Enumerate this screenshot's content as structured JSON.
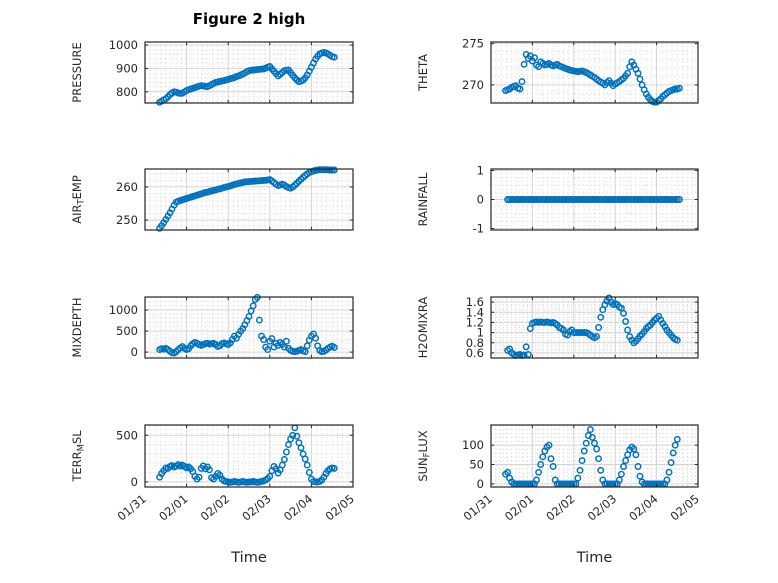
{
  "figure": {
    "title": "Figure 2 high",
    "xlabel": "Time"
  },
  "colors": {
    "marker": "#0072BD",
    "axis": "#262626",
    "grid": "#d4d4d4",
    "minor_grid": "#d7d7d7",
    "text": "#262626",
    "background": "#ffffff"
  },
  "x_ticks": {
    "labels": [
      "01/31",
      "02/01",
      "02/02",
      "02/03",
      "02/04",
      "02/05"
    ],
    "values": [
      0,
      1,
      2,
      3,
      4,
      5
    ]
  },
  "chart_data": [
    {
      "id": "pressure",
      "type": "scatter",
      "row": 0,
      "col": 0,
      "ylabel": "PRESSURE",
      "ylabel_parts": [
        {
          "text": "PRESSURE",
          "sub": false
        }
      ],
      "xlim": [
        0,
        5
      ],
      "ylim": [
        752,
        1013
      ],
      "yticks": [
        800,
        900,
        1000
      ],
      "ytick_labels": [
        "800",
        "900",
        "1000"
      ],
      "y_minor_step": 20,
      "x_start": 0.35,
      "x_step": 0.05,
      "y": [
        755,
        760,
        765,
        770,
        778,
        788,
        795,
        800,
        798,
        795,
        793,
        794,
        800,
        805,
        809,
        812,
        815,
        818,
        821,
        824,
        826,
        825,
        823,
        822,
        826,
        831,
        836,
        840,
        842,
        844,
        846,
        848,
        851,
        853,
        856,
        858,
        861,
        865,
        868,
        872,
        876,
        881,
        886,
        890,
        892,
        893,
        894,
        895,
        896,
        897,
        898,
        901,
        905,
        908,
        898,
        888,
        878,
        868,
        875,
        883,
        890,
        892,
        893,
        882,
        871,
        860,
        851,
        843,
        846,
        850,
        860,
        872,
        888,
        905,
        923,
        940,
        952,
        962,
        966,
        968,
        966,
        962,
        956,
        950,
        948
      ]
    },
    {
      "id": "theta",
      "type": "scatter",
      "row": 0,
      "col": 1,
      "ylabel": "THETA",
      "ylabel_parts": [
        {
          "text": "THETA",
          "sub": false
        }
      ],
      "xlim": [
        0,
        5
      ],
      "ylim": [
        267.8,
        275.2
      ],
      "yticks": [
        270,
        275
      ],
      "ytick_labels": [
        "270",
        "275"
      ],
      "y_minor_step": 1,
      "x_start": 0.35,
      "x_step": 0.05,
      "y": [
        269.3,
        269.4,
        269.5,
        269.7,
        269.8,
        269.9,
        269.6,
        269.5,
        270.4,
        272.5,
        273.7,
        273.2,
        273.5,
        272.9,
        273.3,
        272.4,
        272.2,
        272.8,
        272.6,
        272.4,
        272.5,
        272.6,
        272.4,
        272.3,
        272.4,
        272.5,
        272.3,
        272.2,
        272.1,
        272.0,
        271.9,
        271.8,
        271.75,
        271.7,
        271.65,
        271.6,
        271.65,
        271.7,
        271.6,
        271.5,
        271.35,
        271.2,
        271.05,
        270.9,
        270.7,
        270.5,
        270.35,
        270.2,
        270.0,
        270.3,
        270.5,
        270.2,
        269.9,
        270.1,
        270.25,
        270.4,
        270.6,
        270.8,
        271.1,
        271.4,
        272.2,
        272.8,
        272.4,
        271.9,
        271.4,
        270.7,
        270.0,
        269.4,
        268.9,
        268.5,
        268.2,
        268.0,
        267.9,
        267.9,
        268.1,
        268.3,
        268.6,
        268.8,
        269.0,
        269.2,
        269.3,
        269.4,
        269.5,
        269.5,
        269.6
      ]
    },
    {
      "id": "air-temp",
      "type": "scatter",
      "row": 1,
      "col": 0,
      "ylabel": "AIR_TEMP",
      "ylabel_parts": [
        {
          "text": "AIR",
          "sub": false
        },
        {
          "text": "T",
          "sub": true
        },
        {
          "text": "EMP",
          "sub": false
        }
      ],
      "xlim": [
        0,
        5
      ],
      "ylim": [
        247,
        265.4
      ],
      "yticks": [
        250,
        260
      ],
      "ytick_labels": [
        "250",
        "260"
      ],
      "y_minor_step": 2,
      "x_start": 0.35,
      "x_step": 0.05,
      "y": [
        247.5,
        248.3,
        249.2,
        250.2,
        251.2,
        252.2,
        253.3,
        254.5,
        255.4,
        255.7,
        255.9,
        256.1,
        256.3,
        256.5,
        256.7,
        256.9,
        257.1,
        257.3,
        257.5,
        257.7,
        257.9,
        258.1,
        258.3,
        258.4,
        258.6,
        258.8,
        258.9,
        259.1,
        259.3,
        259.4,
        259.6,
        259.8,
        260.0,
        260.1,
        260.3,
        260.5,
        260.7,
        260.9,
        261.1,
        261.2,
        261.35,
        261.5,
        261.55,
        261.6,
        261.65,
        261.7,
        261.75,
        261.8,
        261.85,
        261.9,
        261.95,
        262.0,
        262.1,
        262.2,
        261.8,
        261.3,
        260.8,
        260.4,
        260.6,
        260.8,
        260.5,
        260.1,
        259.8,
        259.6,
        260.0,
        260.5,
        261.1,
        261.7,
        262.3,
        262.9,
        263.4,
        263.9,
        264.3,
        264.6,
        264.8,
        265.0,
        265.1,
        265.2,
        265.2,
        265.2,
        265.2,
        265.15,
        265.1,
        265.1,
        265.1
      ]
    },
    {
      "id": "rainfall",
      "type": "scatter",
      "row": 1,
      "col": 1,
      "ylabel": "RAINFALL",
      "ylabel_parts": [
        {
          "text": "RAINFALL",
          "sub": false
        }
      ],
      "xlim": [
        0,
        5
      ],
      "ylim": [
        -1.05,
        1.05
      ],
      "yticks": [
        -1,
        0,
        1
      ],
      "ytick_labels": [
        "-1",
        "0",
        "1"
      ],
      "y_minor_step": 0.25,
      "x_start": 0.4,
      "x_step": 0.05,
      "y": [
        0,
        0,
        0,
        0,
        0,
        0,
        0,
        0,
        0,
        0,
        0,
        0,
        0,
        0,
        0,
        0,
        0,
        0,
        0,
        0,
        0,
        0,
        0,
        0,
        0,
        0,
        0,
        0,
        0,
        0,
        0,
        0,
        0,
        0,
        0,
        0,
        0,
        0,
        0,
        0,
        0,
        0,
        0,
        0,
        0,
        0,
        0,
        0,
        0,
        0,
        0,
        0,
        0,
        0,
        0,
        0,
        0,
        0,
        0,
        0,
        0,
        0,
        0,
        0,
        0,
        0,
        0,
        0,
        0,
        0,
        0,
        0,
        0,
        0,
        0,
        0,
        0,
        0,
        0,
        0,
        0,
        0,
        0,
        0
      ]
    },
    {
      "id": "mixdepth",
      "type": "scatter",
      "row": 2,
      "col": 0,
      "ylabel": "MIXDEPTH",
      "ylabel_parts": [
        {
          "text": "MIXDEPTH",
          "sub": false
        }
      ],
      "xlim": [
        0,
        5
      ],
      "ylim": [
        -140,
        1310
      ],
      "yticks": [
        0,
        500,
        1000
      ],
      "ytick_labels": [
        "0",
        "500",
        "1000"
      ],
      "y_minor_step": 100,
      "x_start": 0.35,
      "x_step": 0.05,
      "y": [
        60,
        80,
        70,
        90,
        60,
        20,
        -10,
        -20,
        10,
        60,
        100,
        130,
        90,
        60,
        80,
        150,
        200,
        230,
        210,
        180,
        160,
        180,
        200,
        210,
        190,
        200,
        210,
        180,
        130,
        150,
        200,
        220,
        200,
        180,
        220,
        300,
        380,
        330,
        420,
        500,
        560,
        650,
        750,
        850,
        980,
        1100,
        1250,
        1300,
        760,
        380,
        300,
        120,
        60,
        260,
        320,
        120,
        210,
        160,
        230,
        180,
        120,
        260,
        90,
        40,
        20,
        10,
        20,
        40,
        60,
        30,
        10,
        150,
        280,
        380,
        430,
        330,
        150,
        40,
        10,
        20,
        50,
        90,
        120,
        140,
        110
      ]
    },
    {
      "id": "h2omixra",
      "type": "scatter",
      "row": 2,
      "col": 1,
      "ylabel": "H2OMIXRA",
      "ylabel_parts": [
        {
          "text": "H2OMIXRA",
          "sub": false
        }
      ],
      "xlim": [
        0,
        5
      ],
      "ylim": [
        0.5,
        1.7
      ],
      "yticks": [
        0.6,
        0.8,
        1,
        1.2,
        1.4,
        1.6
      ],
      "ytick_labels": [
        "0.6",
        "0.8",
        "1",
        "1.2",
        "1.4",
        "1.6"
      ],
      "y_minor_step": 0.05,
      "x_start": 0.4,
      "x_step": 0.05,
      "y": [
        0.65,
        0.68,
        0.6,
        0.57,
        0.55,
        0.56,
        0.57,
        0.55,
        0.56,
        0.72,
        0.57,
        1.08,
        1.18,
        1.2,
        1.21,
        1.2,
        1.21,
        1.2,
        1.2,
        1.21,
        1.2,
        1.19,
        1.2,
        1.18,
        1.15,
        1.1,
        1.08,
        1.05,
        0.97,
        0.95,
        1.02,
        1.05,
        1.0,
        1.0,
        1.0,
        1.0,
        1.0,
        1.0,
        1.0,
        0.98,
        0.95,
        0.92,
        0.9,
        0.92,
        1.1,
        1.3,
        1.45,
        1.55,
        1.62,
        1.68,
        1.6,
        1.55,
        1.57,
        1.55,
        1.5,
        1.48,
        1.38,
        1.22,
        1.05,
        0.92,
        0.85,
        0.8,
        0.83,
        0.88,
        0.93,
        0.97,
        1.02,
        1.08,
        1.12,
        1.15,
        1.2,
        1.25,
        1.28,
        1.32,
        1.25,
        1.18,
        1.12,
        1.05,
        1.0,
        0.95,
        0.9,
        0.87,
        0.85
      ]
    },
    {
      "id": "terr-msl",
      "type": "scatter",
      "row": 3,
      "col": 0,
      "ylabel": "TERR_MSL",
      "ylabel_parts": [
        {
          "text": "TERR",
          "sub": false
        },
        {
          "text": "M",
          "sub": true
        },
        {
          "text": "SL",
          "sub": false
        }
      ],
      "xlim": [
        0,
        5
      ],
      "ylim": [
        -55,
        610
      ],
      "yticks": [
        0,
        500
      ],
      "ytick_labels": [
        "0",
        "500"
      ],
      "y_minor_step": 100,
      "x_start": 0.35,
      "x_step": 0.05,
      "y": [
        50,
        90,
        120,
        150,
        145,
        165,
        175,
        160,
        170,
        185,
        170,
        180,
        165,
        150,
        160,
        140,
        110,
        60,
        30,
        50,
        145,
        170,
        140,
        160,
        130,
        45,
        30,
        60,
        90,
        70,
        30,
        10,
        5,
        0,
        -5,
        0,
        5,
        0,
        -5,
        0,
        5,
        0,
        -5,
        0,
        0,
        5,
        0,
        -5,
        0,
        5,
        10,
        20,
        35,
        60,
        120,
        165,
        140,
        95,
        130,
        180,
        240,
        320,
        400,
        460,
        500,
        580,
        490,
        420,
        365,
        300,
        245,
        180,
        100,
        30,
        5,
        0,
        0,
        5,
        20,
        50,
        90,
        120,
        140,
        150,
        145
      ]
    },
    {
      "id": "sun-flux",
      "type": "scatter",
      "row": 3,
      "col": 1,
      "ylabel": "SUN_FLUX",
      "ylabel_parts": [
        {
          "text": "SUN",
          "sub": false
        },
        {
          "text": "F",
          "sub": true
        },
        {
          "text": "LUX",
          "sub": false
        }
      ],
      "xlim": [
        0,
        5
      ],
      "ylim": [
        -8,
        152
      ],
      "yticks": [
        0,
        50,
        100
      ],
      "ytick_labels": [
        "0",
        "50",
        "100"
      ],
      "y_minor_step": 10,
      "x_start": 0.35,
      "x_step": 0.05,
      "y": [
        25,
        30,
        15,
        5,
        0,
        0,
        0,
        0,
        0,
        0,
        0,
        0,
        0,
        0,
        0,
        10,
        30,
        50,
        70,
        85,
        95,
        100,
        65,
        45,
        10,
        0,
        0,
        0,
        0,
        0,
        0,
        0,
        0,
        0,
        0,
        15,
        35,
        60,
        85,
        105,
        125,
        140,
        120,
        105,
        90,
        65,
        35,
        10,
        0,
        0,
        0,
        0,
        0,
        0,
        0,
        10,
        25,
        45,
        60,
        75,
        88,
        95,
        90,
        75,
        45,
        20,
        5,
        0,
        0,
        0,
        0,
        0,
        0,
        0,
        0,
        0,
        0,
        0,
        10,
        30,
        55,
        80,
        100,
        115
      ]
    }
  ]
}
